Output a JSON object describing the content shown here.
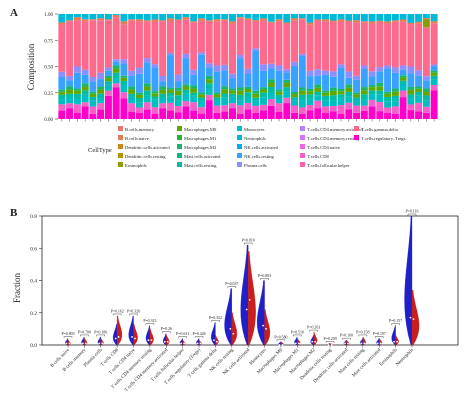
{
  "chart_data": [
    {
      "panel_label": "A",
      "type": "bar",
      "stacked": true,
      "ylabel": "Composition",
      "ylim": [
        0,
        1
      ],
      "yticks": [
        "0.00",
        "0.25",
        "0.50",
        "0.75",
        "1.00"
      ],
      "sample_count": 49,
      "legend_title": "CellType",
      "legend_placement": "bottom",
      "legend": [
        {
          "label": "B.cells.memory",
          "color": "#e8766e"
        },
        {
          "label": "B.cells.naive",
          "color": "#e37d52"
        },
        {
          "label": "Dendritic.cells.activated",
          "color": "#c9891b"
        },
        {
          "label": "Dendritic.cells.resting",
          "color": "#b29300"
        },
        {
          "label": "Eosinophils",
          "color": "#8f9c00"
        },
        {
          "label": "Macrophages.M0",
          "color": "#5fa800"
        },
        {
          "label": "Macrophages.M1",
          "color": "#2aae3a"
        },
        {
          "label": "Macrophages.M2",
          "color": "#19b56b"
        },
        {
          "label": "Mast.cells.activated",
          "color": "#00b989"
        },
        {
          "label": "Mast.cells.resting",
          "color": "#00bca6"
        },
        {
          "label": "Monocytes",
          "color": "#00bdc1"
        },
        {
          "label": "Neutrophils",
          "color": "#00b8d8"
        },
        {
          "label": "NK.cells.activated",
          "color": "#00aef0"
        },
        {
          "label": "NK.cells.resting",
          "color": "#39a2ff"
        },
        {
          "label": "Plasma.cells",
          "color": "#8c90ff"
        },
        {
          "label": "T.cells.CD4.memory.activated",
          "color": "#b583ff"
        },
        {
          "label": "T.cells.CD4.memory.resting",
          "color": "#d774f5"
        },
        {
          "label": "T.cells.CD4.naive",
          "color": "#ee67e3"
        },
        {
          "label": "T.cells.CD8",
          "color": "#f860c7"
        },
        {
          "label": "T.cells.follicular.helper",
          "color": "#ff62a8"
        },
        {
          "label": "T.cells.gamma.delta",
          "color": "#fe6a8c"
        },
        {
          "label": "T.cells.regulatory..Tregs.",
          "color": "#ff00c8"
        }
      ],
      "stack_order_bottom_to_top": [
        "T.cells.regulatory..Tregs.",
        "T.cells.CD8",
        "Monocytes",
        "Mast.cells.resting",
        "Macrophages.M0",
        "Macrophages.M2",
        "NK.cells.resting",
        "Plasma.cells",
        "T.cells.gamma.delta",
        "Eosinophils",
        "B.cells.naive",
        "Neutrophils"
      ],
      "series_values": [
        [
          0.08,
          0.1,
          0.06,
          0.12,
          0.05,
          0.09,
          0.22,
          0.3,
          0.2,
          0.07,
          0.06,
          0.09,
          0.05,
          0.1,
          0.08,
          0.06,
          0.12,
          0.08,
          0.05,
          0.18,
          0.06,
          0.07,
          0.1,
          0.05,
          0.09,
          0.06,
          0.08,
          0.12,
          0.07,
          0.15,
          0.06,
          0.05,
          0.08,
          0.1,
          0.06,
          0.07,
          0.05,
          0.09,
          0.06,
          0.08,
          0.12,
          0.07,
          0.06,
          0.05,
          0.2,
          0.08,
          0.07,
          0.06,
          0.28
        ],
        [
          0.06,
          0.05,
          0.08,
          0.04,
          0.07,
          0.06,
          0.05,
          0.04,
          0.06,
          0.08,
          0.05,
          0.07,
          0.06,
          0.05,
          0.07,
          0.06,
          0.05,
          0.08,
          0.06,
          0.05,
          0.07,
          0.06,
          0.05,
          0.08,
          0.06,
          0.07,
          0.05,
          0.06,
          0.08,
          0.05,
          0.07,
          0.06,
          0.05,
          0.07,
          0.06,
          0.05,
          0.08,
          0.06,
          0.07,
          0.05,
          0.06,
          0.08,
          0.05,
          0.07,
          0.06,
          0.05,
          0.08,
          0.06,
          0.05
        ],
        [
          0.05,
          0.06,
          0.05,
          0.07,
          0.06,
          0.05,
          0.06,
          0.05,
          0.07,
          0.06,
          0.05,
          0.06,
          0.07,
          0.05,
          0.06,
          0.05,
          0.07,
          0.06,
          0.05,
          0.06,
          0.05,
          0.07,
          0.06,
          0.05,
          0.06,
          0.05,
          0.07,
          0.06,
          0.05,
          0.06,
          0.05,
          0.07,
          0.06,
          0.05,
          0.06,
          0.05,
          0.07,
          0.06,
          0.05,
          0.06,
          0.05,
          0.07,
          0.06,
          0.05,
          0.06,
          0.05,
          0.07,
          0.06,
          0.05
        ],
        [
          0.04,
          0.03,
          0.05,
          0.04,
          0.03,
          0.04,
          0.03,
          0.05,
          0.04,
          0.03,
          0.04,
          0.05,
          0.03,
          0.04,
          0.03,
          0.05,
          0.04,
          0.03,
          0.04,
          0.05,
          0.03,
          0.04,
          0.03,
          0.05,
          0.04,
          0.03,
          0.04,
          0.05,
          0.03,
          0.04,
          0.03,
          0.05,
          0.04,
          0.03,
          0.04,
          0.05,
          0.03,
          0.04,
          0.03,
          0.05,
          0.04,
          0.03,
          0.04,
          0.05,
          0.03,
          0.04,
          0.03,
          0.05,
          0.04
        ],
        [
          0.03,
          0.04,
          0.03,
          0.04,
          0.03,
          0.04,
          0.03,
          0.04,
          0.03,
          0.04,
          0.03,
          0.04,
          0.03,
          0.04,
          0.03,
          0.04,
          0.03,
          0.04,
          0.03,
          0.04,
          0.03,
          0.04,
          0.03,
          0.04,
          0.03,
          0.04,
          0.03,
          0.04,
          0.03,
          0.04,
          0.03,
          0.04,
          0.03,
          0.04,
          0.03,
          0.04,
          0.03,
          0.04,
          0.03,
          0.04,
          0.03,
          0.04,
          0.03,
          0.04,
          0.03,
          0.04,
          0.03,
          0.04,
          0.03
        ],
        [
          0.02,
          0.03,
          0.02,
          0.03,
          0.02,
          0.03,
          0.02,
          0.03,
          0.02,
          0.03,
          0.02,
          0.03,
          0.02,
          0.03,
          0.02,
          0.03,
          0.02,
          0.03,
          0.02,
          0.03,
          0.02,
          0.03,
          0.02,
          0.03,
          0.02,
          0.03,
          0.02,
          0.03,
          0.02,
          0.03,
          0.02,
          0.03,
          0.02,
          0.03,
          0.02,
          0.03,
          0.02,
          0.03,
          0.02,
          0.03,
          0.02,
          0.03,
          0.02,
          0.03,
          0.02,
          0.03,
          0.02,
          0.03,
          0.02
        ],
        [
          0.12,
          0.06,
          0.15,
          0.08,
          0.1,
          0.07,
          0.05,
          0.04,
          0.12,
          0.1,
          0.18,
          0.2,
          0.22,
          0.05,
          0.3,
          0.06,
          0.25,
          0.1,
          0.35,
          0.08,
          0.2,
          0.15,
          0.1,
          0.28,
          0.12,
          0.4,
          0.15,
          0.1,
          0.18,
          0.07,
          0.25,
          0.3,
          0.12,
          0.08,
          0.15,
          0.1,
          0.2,
          0.06,
          0.12,
          0.18,
          0.08,
          0.1,
          0.22,
          0.15,
          0.05,
          0.12,
          0.1,
          0.08,
          0.04
        ],
        [
          0.05,
          0.04,
          0.06,
          0.05,
          0.04,
          0.06,
          0.03,
          0.02,
          0.04,
          0.05,
          0.06,
          0.04,
          0.03,
          0.05,
          0.02,
          0.06,
          0.04,
          0.05,
          0.02,
          0.04,
          0.06,
          0.05,
          0.04,
          0.03,
          0.05,
          0.02,
          0.06,
          0.04,
          0.05,
          0.03,
          0.04,
          0.02,
          0.05,
          0.06,
          0.04,
          0.05,
          0.03,
          0.06,
          0.04,
          0.03,
          0.05,
          0.04,
          0.03,
          0.05,
          0.04,
          0.06,
          0.05,
          0.04,
          0.02
        ],
        [
          0.45,
          0.52,
          0.44,
          0.46,
          0.54,
          0.5,
          0.45,
          0.4,
          0.34,
          0.48,
          0.44,
          0.35,
          0.4,
          0.52,
          0.3,
          0.5,
          0.33,
          0.45,
          0.3,
          0.4,
          0.43,
          0.42,
          0.48,
          0.35,
          0.45,
          0.27,
          0.4,
          0.37,
          0.42,
          0.43,
          0.4,
          0.33,
          0.43,
          0.45,
          0.47,
          0.46,
          0.4,
          0.46,
          0.52,
          0.42,
          0.45,
          0.4,
          0.4,
          0.44,
          0.4,
          0.38,
          0.43,
          0.48,
          0.4
        ],
        [
          0.0,
          0.0,
          0.0,
          0.0,
          0.0,
          0.0,
          0.0,
          0.0,
          0.0,
          0.0,
          0.0,
          0.0,
          0.0,
          0.0,
          0.0,
          0.0,
          0.0,
          0.0,
          0.0,
          0.0,
          0.0,
          0.0,
          0.0,
          0.0,
          0.0,
          0.0,
          0.0,
          0.0,
          0.0,
          0.0,
          0.0,
          0.0,
          0.0,
          0.0,
          0.0,
          0.0,
          0.0,
          0.0,
          0.0,
          0.0,
          0.0,
          0.0,
          0.0,
          0.0,
          0.0,
          0.0,
          0.0,
          0.08,
          0.0
        ],
        [
          0.02,
          0.01,
          0.03,
          0.02,
          0.01,
          0.02,
          0.01,
          0.02,
          0.03,
          0.01,
          0.02,
          0.01,
          0.02,
          0.01,
          0.02,
          0.01,
          0.02,
          0.01,
          0.02,
          0.01,
          0.02,
          0.01,
          0.02,
          0.01,
          0.02,
          0.01,
          0.02,
          0.01,
          0.02,
          0.01,
          0.02,
          0.01,
          0.02,
          0.01,
          0.02,
          0.01,
          0.02,
          0.01,
          0.02,
          0.01,
          0.02,
          0.01,
          0.02,
          0.01,
          0.02,
          0.01,
          0.02,
          0.01,
          0.02
        ],
        [
          0.08,
          0.06,
          0.03,
          0.05,
          0.05,
          0.04,
          0.05,
          0.01,
          0.07,
          0.05,
          0.05,
          0.06,
          0.05,
          0.06,
          0.04,
          0.05,
          0.03,
          0.07,
          0.04,
          0.06,
          0.05,
          0.05,
          0.07,
          0.03,
          0.04,
          0.06,
          0.04,
          0.07,
          0.05,
          0.08,
          0.04,
          0.04,
          0.08,
          0.05,
          0.05,
          0.06,
          0.05,
          0.06,
          0.06,
          0.07,
          0.07,
          0.06,
          0.07,
          0.06,
          0.05,
          0.08,
          0.07,
          0.04,
          0.07
        ]
      ]
    },
    {
      "panel_label": "B",
      "type": "violin",
      "split": true,
      "ylabel": "Fraction",
      "ylim": [
        0,
        0.8
      ],
      "yticks": [
        "0.0",
        "0.2",
        "0.4",
        "0.6",
        "0.8"
      ],
      "group_colors": [
        "#2020c8",
        "#c81e1e"
      ],
      "categories": [
        "B cells naive",
        "B cells memory",
        "Plasma cells",
        "T cells CD8",
        "T cells CD4 naive",
        "T cells CD4 memory resting",
        "T cells CD4 memory activated",
        "T cells follicular helper",
        "T cells regulatory (Tregs)",
        "T cells gamma delta",
        "NK cells resting",
        "NK cells activated",
        "Monocytes",
        "Macrophages M0",
        "Macrophages M1",
        "Macrophages M2",
        "Dendritic cells resting",
        "Dendritic cells activated",
        "Mast cells resting",
        "Mast cells activated",
        "Eosinophils",
        "Neutrophils"
      ],
      "p_values": [
        "P=0.803",
        "P=0.700",
        "P=0.186",
        "P=0.162",
        "P=0.326",
        "P=0.315",
        "P=0.26",
        "P=0.611",
        "P=0.426",
        "P=0.352",
        "P=0.037",
        "P=0.010",
        "P=0.803",
        "P=0.580",
        "P=0.510",
        "P=0.263",
        "P=0.209",
        "P=0.160",
        "P=0.158",
        "P=0.197",
        "P=0.157",
        "P=0.116"
      ],
      "group_a_max": [
        0.04,
        0.05,
        0.05,
        0.13,
        0.18,
        0.12,
        0.07,
        0.04,
        0.04,
        0.14,
        0.35,
        0.62,
        0.4,
        0.02,
        0.05,
        0.06,
        0.01,
        0.03,
        0.04,
        0.04,
        0.12,
        0.8
      ],
      "group_b_max": [
        0.03,
        0.04,
        0.04,
        0.18,
        0.13,
        0.1,
        0.06,
        0.03,
        0.03,
        0.06,
        0.2,
        0.58,
        0.22,
        0.02,
        0.04,
        0.08,
        0.01,
        0.03,
        0.05,
        0.04,
        0.06,
        0.34
      ],
      "group_a_median": [
        0.01,
        0.01,
        0.01,
        0.04,
        0.05,
        0.03,
        0.02,
        0.01,
        0.01,
        0.03,
        0.1,
        0.22,
        0.12,
        0.0,
        0.01,
        0.02,
        0.0,
        0.01,
        0.01,
        0.01,
        0.02,
        0.17
      ],
      "group_b_median": [
        0.01,
        0.01,
        0.01,
        0.05,
        0.04,
        0.03,
        0.02,
        0.01,
        0.01,
        0.02,
        0.07,
        0.28,
        0.1,
        0.0,
        0.01,
        0.02,
        0.0,
        0.01,
        0.01,
        0.01,
        0.02,
        0.16
      ]
    }
  ]
}
